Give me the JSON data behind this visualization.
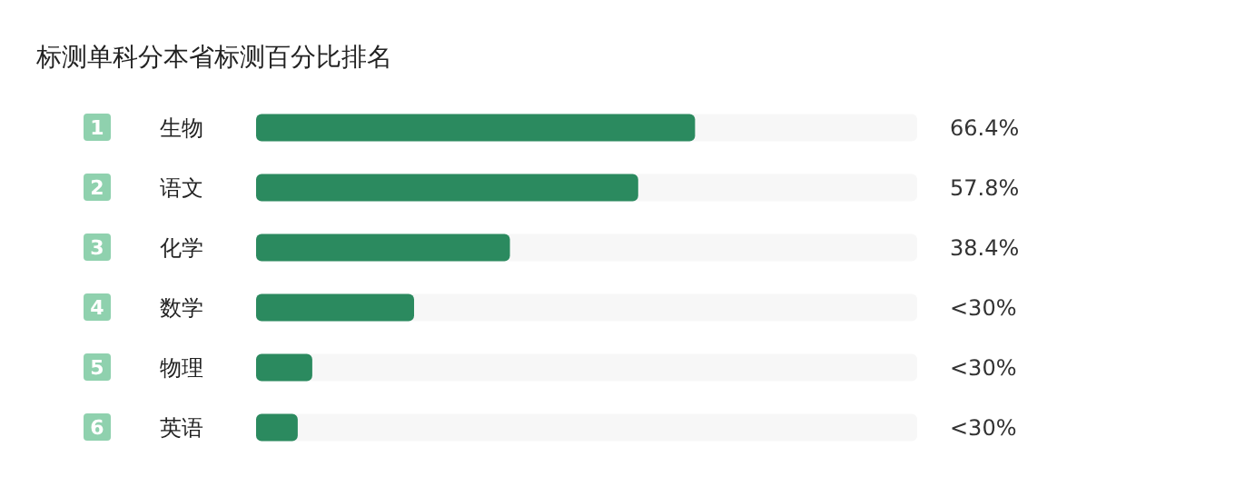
{
  "chart_data": {
    "type": "bar",
    "orientation": "horizontal",
    "title": "标测单科分本省标测百分比排名",
    "categories": [
      "生物",
      "语文",
      "化学",
      "数学",
      "物理",
      "英语"
    ],
    "values": [
      66.4,
      57.8,
      38.4,
      23.9,
      8.5,
      6.3
    ],
    "value_labels": [
      "66.4%",
      "57.8%",
      "38.4%",
      "<30%",
      "<30%",
      "<30%"
    ],
    "color": "#2b8a5f",
    "xlim": [
      0,
      100
    ],
    "tick_labels": "y",
    "grid": false,
    "annotations": [
      "1",
      "2",
      "3",
      "4",
      "5",
      "6"
    ]
  }
}
